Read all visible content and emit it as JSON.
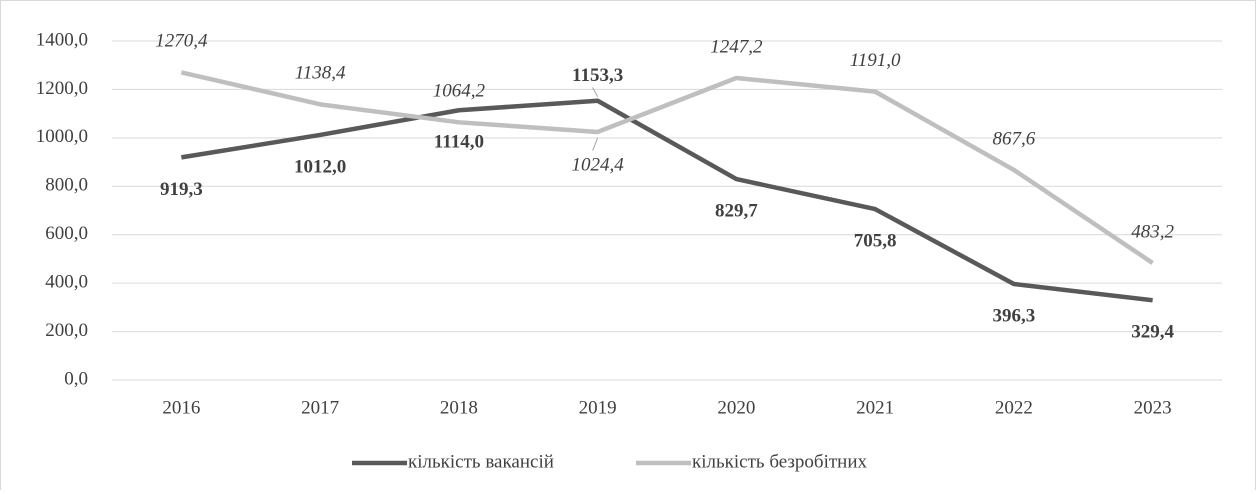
{
  "chart_data": {
    "type": "line",
    "categories": [
      "2016",
      "2017",
      "2018",
      "2019",
      "2020",
      "2021",
      "2022",
      "2023"
    ],
    "series": [
      {
        "name": "кількість вакансій",
        "color": "#595959",
        "values": [
          919.3,
          1012.0,
          1114.0,
          1153.3,
          829.7,
          705.8,
          396.3,
          329.4
        ],
        "value_labels": [
          "919,3",
          "1012,0",
          "1114,0",
          "1153,3",
          "829,7",
          "705,8",
          "396,3",
          "329,4"
        ]
      },
      {
        "name": "кількість безробітних",
        "color": "#bfbfbf",
        "values": [
          1270.4,
          1138.4,
          1064.2,
          1024.4,
          1247.2,
          1191.0,
          867.6,
          483.2
        ],
        "value_labels": [
          "1270,4",
          "1138,4",
          "1064,2",
          "1024,4",
          "1247,2",
          "1191,0",
          "867,6",
          "483,2"
        ]
      }
    ],
    "ylim": [
      0,
      1400
    ],
    "yticks": [
      {
        "value": 0,
        "label": "0,0"
      },
      {
        "value": 200,
        "label": "200,0"
      },
      {
        "value": 400,
        "label": "400,0"
      },
      {
        "value": 600,
        "label": "600,0"
      },
      {
        "value": 800,
        "label": "800,0"
      },
      {
        "value": 1000,
        "label": "1000,0"
      },
      {
        "value": 1200,
        "label": "1200,0"
      },
      {
        "value": 1400,
        "label": "1400,0"
      }
    ],
    "grid": true,
    "legend": "bottom"
  }
}
